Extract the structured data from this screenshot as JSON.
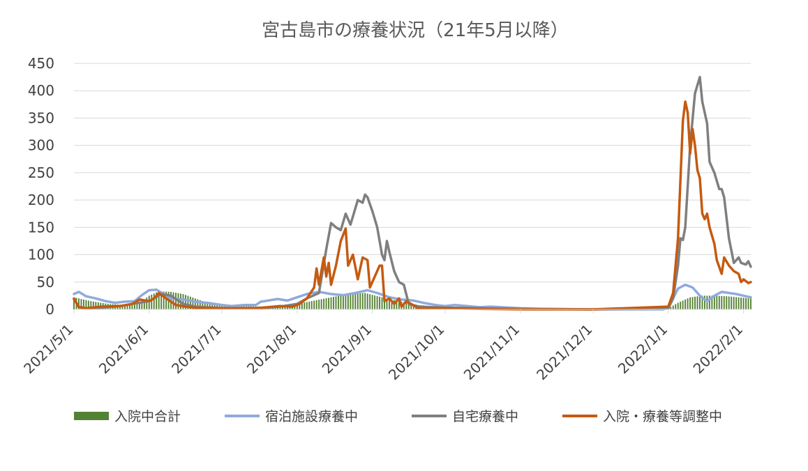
{
  "chart_data": {
    "type": "line",
    "title": "宮古島市の療養状況（21年5月以降）",
    "xlabel": "",
    "ylabel": "",
    "ylim": [
      0,
      450
    ],
    "yticks": [
      "0",
      "50",
      "100",
      "150",
      "200",
      "250",
      "300",
      "350",
      "400",
      "450"
    ],
    "xlim": [
      "2021-05-01",
      "2022-02-04"
    ],
    "xticks": [
      {
        "date": "2021-05-01",
        "label": "2021/5/1"
      },
      {
        "date": "2021-06-01",
        "label": "2021/6/1"
      },
      {
        "date": "2021-07-01",
        "label": "2021/7/1"
      },
      {
        "date": "2021-08-01",
        "label": "2021/8/1"
      },
      {
        "date": "2021-09-01",
        "label": "2021/9/1"
      },
      {
        "date": "2021-10-01",
        "label": "2021/10/1"
      },
      {
        "date": "2021-11-01",
        "label": "2021/11/1"
      },
      {
        "date": "2021-12-01",
        "label": "2021/12/1"
      },
      {
        "date": "2022-01-01",
        "label": "2022/1/1"
      },
      {
        "date": "2022-02-01",
        "label": "2022/2/1"
      }
    ],
    "grid": true,
    "legend_position": "bottom",
    "series": [
      {
        "name": "入院中合計",
        "kind": "bar",
        "color": "#548235",
        "points": [
          [
            "2021-05-01",
            22
          ],
          [
            "2021-05-08",
            15
          ],
          [
            "2021-05-15",
            10
          ],
          [
            "2021-05-22",
            8
          ],
          [
            "2021-05-29",
            15
          ],
          [
            "2021-06-01",
            25
          ],
          [
            "2021-06-05",
            33
          ],
          [
            "2021-06-10",
            32
          ],
          [
            "2021-06-15",
            28
          ],
          [
            "2021-06-20",
            20
          ],
          [
            "2021-06-25",
            12
          ],
          [
            "2021-07-01",
            8
          ],
          [
            "2021-07-10",
            6
          ],
          [
            "2021-07-20",
            5
          ],
          [
            "2021-08-01",
            10
          ],
          [
            "2021-08-08",
            16
          ],
          [
            "2021-08-15",
            22
          ],
          [
            "2021-08-22",
            28
          ],
          [
            "2021-08-29",
            30
          ],
          [
            "2021-09-05",
            22
          ],
          [
            "2021-09-12",
            15
          ],
          [
            "2021-09-20",
            8
          ],
          [
            "2021-10-01",
            4
          ],
          [
            "2021-10-15",
            2
          ],
          [
            "2021-11-01",
            1
          ],
          [
            "2021-12-01",
            0
          ],
          [
            "2021-12-25",
            0
          ],
          [
            "2022-01-01",
            2
          ],
          [
            "2022-01-05",
            12
          ],
          [
            "2022-01-10",
            22
          ],
          [
            "2022-01-15",
            25
          ],
          [
            "2022-01-20",
            25
          ],
          [
            "2022-01-25",
            24
          ],
          [
            "2022-01-30",
            22
          ],
          [
            "2022-02-04",
            20
          ]
        ]
      },
      {
        "name": "宿泊施設療養中",
        "kind": "line",
        "color": "#8faadc",
        "points": [
          [
            "2021-05-01",
            28
          ],
          [
            "2021-05-03",
            32
          ],
          [
            "2021-05-06",
            24
          ],
          [
            "2021-05-10",
            20
          ],
          [
            "2021-05-14",
            15
          ],
          [
            "2021-05-18",
            12
          ],
          [
            "2021-05-22",
            14
          ],
          [
            "2021-05-26",
            15
          ],
          [
            "2021-05-29",
            26
          ],
          [
            "2021-06-01",
            35
          ],
          [
            "2021-06-04",
            36
          ],
          [
            "2021-06-07",
            28
          ],
          [
            "2021-06-10",
            20
          ],
          [
            "2021-06-15",
            18
          ],
          [
            "2021-06-20",
            14
          ],
          [
            "2021-06-25",
            12
          ],
          [
            "2021-07-01",
            8
          ],
          [
            "2021-07-05",
            6
          ],
          [
            "2021-07-10",
            8
          ],
          [
            "2021-07-15",
            8
          ],
          [
            "2021-07-17",
            14
          ],
          [
            "2021-07-20",
            16
          ],
          [
            "2021-07-24",
            19
          ],
          [
            "2021-07-28",
            16
          ],
          [
            "2021-08-01",
            22
          ],
          [
            "2021-08-05",
            28
          ],
          [
            "2021-08-10",
            32
          ],
          [
            "2021-08-15",
            28
          ],
          [
            "2021-08-20",
            26
          ],
          [
            "2021-08-25",
            30
          ],
          [
            "2021-08-30",
            35
          ],
          [
            "2021-09-03",
            30
          ],
          [
            "2021-09-08",
            22
          ],
          [
            "2021-09-13",
            18
          ],
          [
            "2021-09-18",
            16
          ],
          [
            "2021-09-22",
            12
          ],
          [
            "2021-09-27",
            8
          ],
          [
            "2021-10-01",
            6
          ],
          [
            "2021-10-05",
            8
          ],
          [
            "2021-10-10",
            6
          ],
          [
            "2021-10-15",
            4
          ],
          [
            "2021-10-20",
            5
          ],
          [
            "2021-11-01",
            2
          ],
          [
            "2021-11-10",
            1
          ],
          [
            "2021-12-01",
            0
          ],
          [
            "2021-12-30",
            0
          ],
          [
            "2022-01-01",
            3
          ],
          [
            "2022-01-03",
            20
          ],
          [
            "2022-01-05",
            38
          ],
          [
            "2022-01-08",
            45
          ],
          [
            "2022-01-11",
            40
          ],
          [
            "2022-01-14",
            25
          ],
          [
            "2022-01-17",
            15
          ],
          [
            "2022-01-20",
            25
          ],
          [
            "2022-01-23",
            32
          ],
          [
            "2022-01-26",
            30
          ],
          [
            "2022-01-29",
            28
          ],
          [
            "2022-02-01",
            25
          ],
          [
            "2022-02-04",
            22
          ]
        ]
      },
      {
        "name": "自宅療養中",
        "kind": "line",
        "color": "#7f7f7f",
        "points": [
          [
            "2021-05-01",
            18
          ],
          [
            "2021-05-03",
            5
          ],
          [
            "2021-05-06",
            2
          ],
          [
            "2021-05-12",
            3
          ],
          [
            "2021-05-20",
            6
          ],
          [
            "2021-05-25",
            10
          ],
          [
            "2021-06-01",
            15
          ],
          [
            "2021-06-06",
            28
          ],
          [
            "2021-06-10",
            25
          ],
          [
            "2021-06-15",
            10
          ],
          [
            "2021-06-20",
            5
          ],
          [
            "2021-07-01",
            2
          ],
          [
            "2021-07-15",
            2
          ],
          [
            "2021-07-25",
            5
          ],
          [
            "2021-08-01",
            10
          ],
          [
            "2021-08-05",
            20
          ],
          [
            "2021-08-10",
            30
          ],
          [
            "2021-08-13",
            110
          ],
          [
            "2021-08-15",
            158
          ],
          [
            "2021-08-17",
            150
          ],
          [
            "2021-08-19",
            145
          ],
          [
            "2021-08-21",
            175
          ],
          [
            "2021-08-23",
            155
          ],
          [
            "2021-08-26",
            200
          ],
          [
            "2021-08-28",
            195
          ],
          [
            "2021-08-29",
            210
          ],
          [
            "2021-08-30",
            205
          ],
          [
            "2021-09-01",
            180
          ],
          [
            "2021-09-03",
            150
          ],
          [
            "2021-09-05",
            100
          ],
          [
            "2021-09-06",
            90
          ],
          [
            "2021-09-07",
            125
          ],
          [
            "2021-09-08",
            105
          ],
          [
            "2021-09-10",
            70
          ],
          [
            "2021-09-12",
            50
          ],
          [
            "2021-09-14",
            45
          ],
          [
            "2021-09-16",
            10
          ],
          [
            "2021-09-20",
            5
          ],
          [
            "2021-10-01",
            3
          ],
          [
            "2021-10-15",
            2
          ],
          [
            "2021-11-01",
            1
          ],
          [
            "2021-12-01",
            0
          ],
          [
            "2022-01-01",
            2
          ],
          [
            "2022-01-03",
            20
          ],
          [
            "2022-01-05",
            80
          ],
          [
            "2022-01-06",
            130
          ],
          [
            "2022-01-07",
            127
          ],
          [
            "2022-01-08",
            150
          ],
          [
            "2022-01-10",
            300
          ],
          [
            "2022-01-12",
            395
          ],
          [
            "2022-01-14",
            425
          ],
          [
            "2022-01-15",
            380
          ],
          [
            "2022-01-17",
            340
          ],
          [
            "2022-01-18",
            270
          ],
          [
            "2022-01-20",
            250
          ],
          [
            "2022-01-22",
            220
          ],
          [
            "2022-01-23",
            220
          ],
          [
            "2022-01-24",
            205
          ],
          [
            "2022-01-26",
            130
          ],
          [
            "2022-01-28",
            85
          ],
          [
            "2022-01-30",
            95
          ],
          [
            "2022-01-31",
            85
          ],
          [
            "2022-02-02",
            82
          ],
          [
            "2022-02-03",
            88
          ],
          [
            "2022-02-04",
            78
          ]
        ]
      },
      {
        "name": "入院・療養等調整中",
        "kind": "line",
        "color": "#c55a11",
        "points": [
          [
            "2021-05-01",
            20
          ],
          [
            "2021-05-03",
            4
          ],
          [
            "2021-05-06",
            2
          ],
          [
            "2021-05-12",
            5
          ],
          [
            "2021-05-20",
            6
          ],
          [
            "2021-05-25",
            10
          ],
          [
            "2021-05-28",
            18
          ],
          [
            "2021-06-01",
            15
          ],
          [
            "2021-06-03",
            20
          ],
          [
            "2021-06-05",
            30
          ],
          [
            "2021-06-08",
            20
          ],
          [
            "2021-06-12",
            8
          ],
          [
            "2021-06-16",
            5
          ],
          [
            "2021-06-20",
            3
          ],
          [
            "2021-07-01",
            2
          ],
          [
            "2021-07-15",
            2
          ],
          [
            "2021-07-25",
            6
          ],
          [
            "2021-07-30",
            5
          ],
          [
            "2021-08-02",
            10
          ],
          [
            "2021-08-05",
            20
          ],
          [
            "2021-08-08",
            40
          ],
          [
            "2021-08-09",
            75
          ],
          [
            "2021-08-10",
            45
          ],
          [
            "2021-08-12",
            95
          ],
          [
            "2021-08-13",
            60
          ],
          [
            "2021-08-14",
            85
          ],
          [
            "2021-08-15",
            45
          ],
          [
            "2021-08-17",
            80
          ],
          [
            "2021-08-19",
            125
          ],
          [
            "2021-08-21",
            148
          ],
          [
            "2021-08-22",
            80
          ],
          [
            "2021-08-24",
            100
          ],
          [
            "2021-08-26",
            55
          ],
          [
            "2021-08-28",
            95
          ],
          [
            "2021-08-30",
            90
          ],
          [
            "2021-08-31",
            40
          ],
          [
            "2021-09-02",
            60
          ],
          [
            "2021-09-04",
            80
          ],
          [
            "2021-09-05",
            80
          ],
          [
            "2021-09-06",
            15
          ],
          [
            "2021-09-08",
            20
          ],
          [
            "2021-09-10",
            10
          ],
          [
            "2021-09-12",
            20
          ],
          [
            "2021-09-13",
            5
          ],
          [
            "2021-09-15",
            15
          ],
          [
            "2021-09-20",
            2
          ],
          [
            "2021-10-01",
            2
          ],
          [
            "2021-10-15",
            1
          ],
          [
            "2021-11-01",
            0
          ],
          [
            "2021-12-01",
            0
          ],
          [
            "2022-01-01",
            5
          ],
          [
            "2022-01-03",
            30
          ],
          [
            "2022-01-05",
            130
          ],
          [
            "2022-01-07",
            345
          ],
          [
            "2022-01-08",
            380
          ],
          [
            "2022-01-09",
            360
          ],
          [
            "2022-01-10",
            285
          ],
          [
            "2022-01-11",
            330
          ],
          [
            "2022-01-12",
            300
          ],
          [
            "2022-01-13",
            255
          ],
          [
            "2022-01-14",
            240
          ],
          [
            "2022-01-15",
            175
          ],
          [
            "2022-01-16",
            165
          ],
          [
            "2022-01-17",
            175
          ],
          [
            "2022-01-18",
            150
          ],
          [
            "2022-01-20",
            120
          ],
          [
            "2022-01-21",
            90
          ],
          [
            "2022-01-23",
            65
          ],
          [
            "2022-01-24",
            95
          ],
          [
            "2022-01-26",
            80
          ],
          [
            "2022-01-28",
            70
          ],
          [
            "2022-01-30",
            65
          ],
          [
            "2022-01-31",
            50
          ],
          [
            "2022-02-01",
            55
          ],
          [
            "2022-02-03",
            48
          ],
          [
            "2022-02-04",
            50
          ]
        ]
      }
    ]
  }
}
